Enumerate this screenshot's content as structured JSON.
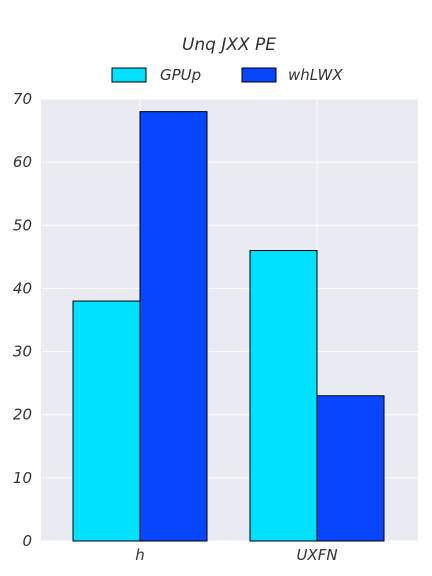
{
  "chart_data": {
    "type": "bar",
    "title": "Unq JXX PE",
    "xlabel": "",
    "ylabel": "",
    "categories": [
      "h",
      "UXFN"
    ],
    "series": [
      {
        "name": "GPUp",
        "values": [
          38,
          46
        ],
        "color": "#00e1ff"
      },
      {
        "name": "whLWX",
        "values": [
          68,
          23
        ],
        "color": "#0845ff"
      }
    ],
    "ylim": [
      0,
      70
    ],
    "yticks": [
      0,
      10,
      20,
      30,
      40,
      50,
      60,
      70
    ],
    "grid": true,
    "legend_position": "top-center",
    "background_color": "#eaeaf2",
    "grid_color": "#ffffff",
    "bar_edge_color": "#000000"
  }
}
